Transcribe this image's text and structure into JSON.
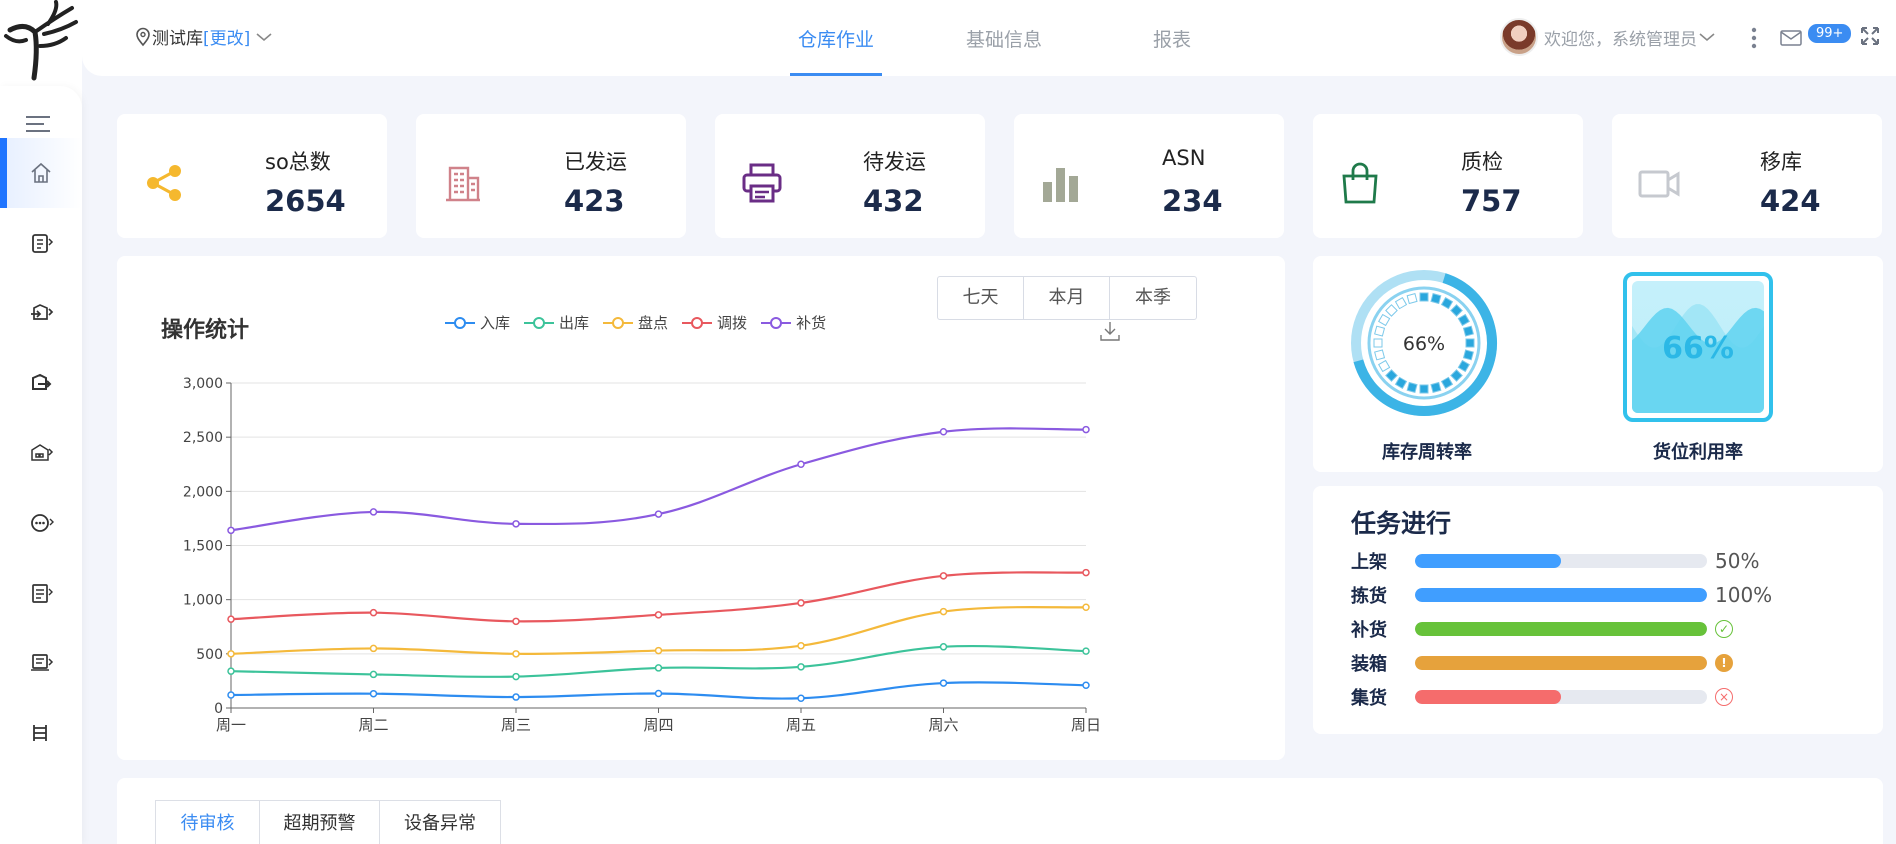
{
  "header": {
    "warehouse_name": "测试库",
    "warehouse_change": "[更改]",
    "tabs": [
      {
        "label": "仓库作业",
        "active": true
      },
      {
        "label": "基础信息",
        "active": false
      },
      {
        "label": "报表",
        "active": false
      }
    ],
    "welcome": "欢迎您，系统管理员",
    "notification_badge": "99+"
  },
  "sidebar": {
    "items": [
      {
        "icon": "home-icon",
        "active": true
      },
      {
        "icon": "clipboard-icon",
        "active": false
      },
      {
        "icon": "inbound-icon",
        "active": false
      },
      {
        "icon": "outbound-icon",
        "active": false
      },
      {
        "icon": "warehouse-icon",
        "active": false
      },
      {
        "icon": "more-circle-icon",
        "active": false
      },
      {
        "icon": "document-icon",
        "active": false
      },
      {
        "icon": "printer-list-icon",
        "active": false
      },
      {
        "icon": "shelf-icon",
        "active": false
      }
    ]
  },
  "stats": [
    {
      "label": "so总数",
      "value": "2654",
      "icon": "share-icon",
      "color": "#f5b82e"
    },
    {
      "label": "已发运",
      "value": "423",
      "icon": "building-icon",
      "color": "#d0828a"
    },
    {
      "label": "待发运",
      "value": "432",
      "icon": "printer-icon",
      "color": "#6a2d86"
    },
    {
      "label": "ASN",
      "value": "234",
      "icon": "bar-chart-icon",
      "color": "#a3a896"
    },
    {
      "label": "质检",
      "value": "757",
      "icon": "shopping-bag-icon",
      "color": "#1f7a4a"
    },
    {
      "label": "移库",
      "value": "424",
      "icon": "video-camera-icon",
      "color": "#c6c9cf"
    }
  ],
  "chart": {
    "title": "操作统计",
    "range_buttons": [
      "七天",
      "本月",
      "本季"
    ]
  },
  "chart_data": {
    "type": "line",
    "title": "操作统计",
    "categories": [
      "周一",
      "周二",
      "周三",
      "周四",
      "周五",
      "周六",
      "周日"
    ],
    "ylim": [
      0,
      3000
    ],
    "yticks": [
      "0",
      "500",
      "1,000",
      "1,500",
      "2,000",
      "2,500",
      "3,000"
    ],
    "grid": true,
    "legend_position": "top",
    "series": [
      {
        "name": "入库",
        "color": "#2d8cf0",
        "values": [
          120,
          132,
          101,
          134,
          90,
          230,
          210
        ]
      },
      {
        "name": "出库",
        "color": "#3cc39a",
        "values": [
          340,
          310,
          290,
          370,
          380,
          565,
          525
        ]
      },
      {
        "name": "盘点",
        "color": "#f4b93b",
        "values": [
          500,
          550,
          500,
          530,
          575,
          890,
          930
        ]
      },
      {
        "name": "调拨",
        "color": "#e8585e",
        "values": [
          820,
          880,
          800,
          860,
          970,
          1220,
          1250
        ]
      },
      {
        "name": "补货",
        "color": "#8a5ae0",
        "values": [
          1640,
          1810,
          1700,
          1790,
          2250,
          2550,
          2570
        ]
      }
    ]
  },
  "gauges": {
    "turnover": {
      "label": "库存周转率",
      "value_text": "66%",
      "value": 0.66
    },
    "utilization": {
      "label": "货位利用率",
      "value_text": "66%",
      "value": 0.66
    }
  },
  "tasks": {
    "title": "任务进行",
    "rows": [
      {
        "name": "上架",
        "progress": 0.5,
        "pct_text": "50%",
        "color": "#409eff",
        "status": "text"
      },
      {
        "name": "拣货",
        "progress": 1.0,
        "pct_text": "100%",
        "color": "#409eff",
        "status": "text"
      },
      {
        "name": "补货",
        "progress": 1.0,
        "pct_text": "",
        "color": "#67c23a",
        "status": "success"
      },
      {
        "name": "装箱",
        "progress": 1.0,
        "pct_text": "",
        "color": "#e6a23c",
        "status": "warning"
      },
      {
        "name": "集货",
        "progress": 0.5,
        "pct_text": "",
        "color": "#f56c6c",
        "status": "error"
      }
    ]
  },
  "bottom_tabs": [
    {
      "label": "待审核",
      "active": true
    },
    {
      "label": "超期预警",
      "active": false
    },
    {
      "label": "设备异常",
      "active": false
    }
  ]
}
